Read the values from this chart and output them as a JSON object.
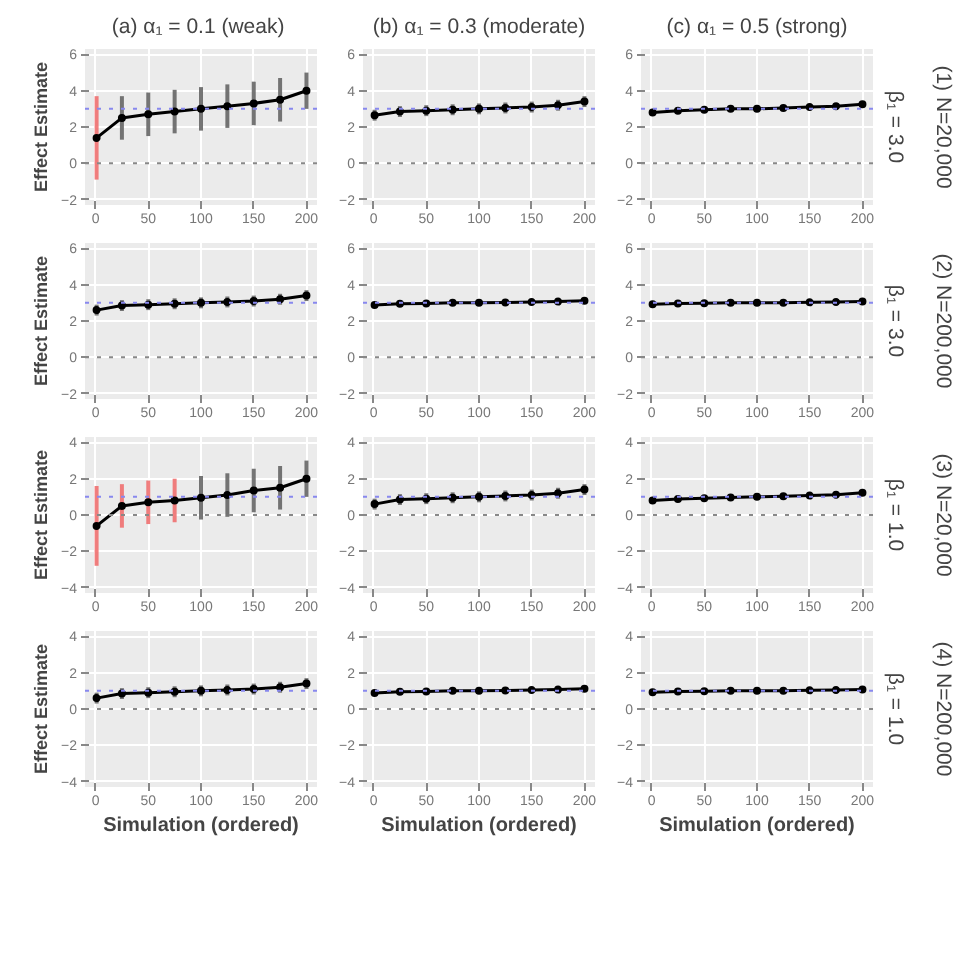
{
  "chart_data": [
    {
      "type": "line",
      "title": "(a) α₁ = 0.1  (weak)",
      "ylabel": "Effect Estimate",
      "x": [
        1,
        25,
        50,
        75,
        100,
        125,
        150,
        175,
        200
      ],
      "series": [
        {
          "color": "#000000",
          "values": [
            1.4,
            2.5,
            2.7,
            2.85,
            3.0,
            3.15,
            3.3,
            3.5,
            4.0
          ],
          "errors": [
            2.3,
            1.2,
            1.2,
            1.2,
            1.2,
            1.2,
            1.2,
            1.2,
            1.0
          ],
          "colors": [
            "#f07070",
            "#666666",
            "#666666",
            "#666666",
            "#666666",
            "#666666",
            "#666666",
            "#666666",
            "#666666"
          ]
        }
      ],
      "xlim": [
        -10,
        210
      ],
      "ylim": [
        -2.3,
        6.3
      ],
      "xticks": [
        0,
        50,
        100,
        150,
        200
      ],
      "yticks": [
        -2,
        0,
        2,
        4,
        6
      ],
      "ref_lines": [
        {
          "axis": "y",
          "value": 0,
          "color": "#888888",
          "line_style": "dotted"
        },
        {
          "axis": "y",
          "value": 3,
          "color": "#8888ee",
          "line_style": "dotted"
        }
      ],
      "grid": true,
      "marker": "circle"
    },
    {
      "type": "line",
      "title": "(b) α₁ = 0.3 (moderate)",
      "x": [
        1,
        25,
        50,
        75,
        100,
        125,
        150,
        175,
        200
      ],
      "series": [
        {
          "color": "#000000",
          "values": [
            2.65,
            2.85,
            2.9,
            2.95,
            3.0,
            3.05,
            3.1,
            3.2,
            3.4
          ],
          "errors": [
            0.3,
            0.3,
            0.3,
            0.3,
            0.3,
            0.3,
            0.3,
            0.3,
            0.3
          ],
          "colors": [
            "#666666",
            "#666666",
            "#666666",
            "#666666",
            "#666666",
            "#666666",
            "#666666",
            "#666666",
            "#666666"
          ]
        }
      ],
      "xlim": [
        -10,
        210
      ],
      "ylim": [
        -2.3,
        6.3
      ],
      "xticks": [
        0,
        50,
        100,
        150,
        200
      ],
      "yticks": [
        -2,
        0,
        2,
        4,
        6
      ],
      "ref_lines": [
        {
          "axis": "y",
          "value": 0,
          "color": "#888888",
          "line_style": "dotted"
        },
        {
          "axis": "y",
          "value": 3,
          "color": "#8888ee",
          "line_style": "dotted"
        }
      ],
      "grid": true,
      "marker": "circle"
    },
    {
      "type": "line",
      "title": "(c) α₁ = 0.5 (strong)",
      "annotations": [
        "(1) N=20,000",
        "β₁ = 3.0"
      ],
      "x": [
        1,
        25,
        50,
        75,
        100,
        125,
        150,
        175,
        200
      ],
      "series": [
        {
          "color": "#000000",
          "values": [
            2.8,
            2.9,
            2.95,
            3.0,
            3.0,
            3.05,
            3.1,
            3.15,
            3.25
          ],
          "errors": [
            0.15,
            0.15,
            0.15,
            0.15,
            0.15,
            0.15,
            0.15,
            0.15,
            0.15
          ],
          "colors": [
            "#666666",
            "#666666",
            "#666666",
            "#666666",
            "#666666",
            "#666666",
            "#666666",
            "#666666",
            "#666666"
          ]
        }
      ],
      "xlim": [
        -10,
        210
      ],
      "ylim": [
        -2.3,
        6.3
      ],
      "xticks": [
        0,
        50,
        100,
        150,
        200
      ],
      "yticks": [
        -2,
        0,
        2,
        4,
        6
      ],
      "ref_lines": [
        {
          "axis": "y",
          "value": 0,
          "color": "#888888",
          "line_style": "dotted"
        },
        {
          "axis": "y",
          "value": 3,
          "color": "#8888ee",
          "line_style": "dotted"
        }
      ],
      "grid": true,
      "marker": "circle"
    },
    {
      "type": "line",
      "ylabel": "Effect Estimate",
      "x": [
        1,
        25,
        50,
        75,
        100,
        125,
        150,
        175,
        200
      ],
      "series": [
        {
          "color": "#000000",
          "values": [
            2.6,
            2.85,
            2.9,
            2.95,
            3.0,
            3.05,
            3.1,
            3.2,
            3.4
          ],
          "errors": [
            0.3,
            0.3,
            0.3,
            0.3,
            0.3,
            0.3,
            0.3,
            0.3,
            0.3
          ],
          "colors": [
            "#666666",
            "#666666",
            "#666666",
            "#666666",
            "#666666",
            "#666666",
            "#666666",
            "#666666",
            "#666666"
          ]
        }
      ],
      "xlim": [
        -10,
        210
      ],
      "ylim": [
        -2.3,
        6.3
      ],
      "xticks": [
        0,
        50,
        100,
        150,
        200
      ],
      "yticks": [
        -2,
        0,
        2,
        4,
        6
      ],
      "ref_lines": [
        {
          "axis": "y",
          "value": 0,
          "color": "#888888",
          "line_style": "dotted"
        },
        {
          "axis": "y",
          "value": 3,
          "color": "#8888ee",
          "line_style": "dotted"
        }
      ],
      "grid": true,
      "marker": "circle"
    },
    {
      "type": "line",
      "x": [
        1,
        25,
        50,
        75,
        100,
        125,
        150,
        175,
        200
      ],
      "series": [
        {
          "color": "#000000",
          "values": [
            2.88,
            2.95,
            2.97,
            3.0,
            3.0,
            3.02,
            3.05,
            3.07,
            3.12
          ],
          "errors": [
            0.08,
            0.08,
            0.08,
            0.08,
            0.08,
            0.08,
            0.08,
            0.08,
            0.08
          ],
          "colors": [
            "#666666",
            "#666666",
            "#666666",
            "#666666",
            "#666666",
            "#666666",
            "#666666",
            "#666666",
            "#666666"
          ]
        }
      ],
      "xlim": [
        -10,
        210
      ],
      "ylim": [
        -2.3,
        6.3
      ],
      "xticks": [
        0,
        50,
        100,
        150,
        200
      ],
      "yticks": [
        -2,
        0,
        2,
        4,
        6
      ],
      "ref_lines": [
        {
          "axis": "y",
          "value": 0,
          "color": "#888888",
          "line_style": "dotted"
        },
        {
          "axis": "y",
          "value": 3,
          "color": "#8888ee",
          "line_style": "dotted"
        }
      ],
      "grid": true,
      "marker": "circle"
    },
    {
      "type": "line",
      "annotations": [
        "(2) N=200,000",
        "β₁ = 3.0"
      ],
      "x": [
        1,
        25,
        50,
        75,
        100,
        125,
        150,
        175,
        200
      ],
      "series": [
        {
          "color": "#000000",
          "values": [
            2.92,
            2.96,
            2.98,
            3.0,
            3.0,
            3.01,
            3.03,
            3.05,
            3.08
          ],
          "errors": [
            0.05,
            0.05,
            0.05,
            0.05,
            0.05,
            0.05,
            0.05,
            0.05,
            0.05
          ],
          "colors": [
            "#666666",
            "#666666",
            "#666666",
            "#666666",
            "#666666",
            "#666666",
            "#666666",
            "#666666",
            "#666666"
          ]
        }
      ],
      "xlim": [
        -10,
        210
      ],
      "ylim": [
        -2.3,
        6.3
      ],
      "xticks": [
        0,
        50,
        100,
        150,
        200
      ],
      "yticks": [
        -2,
        0,
        2,
        4,
        6
      ],
      "ref_lines": [
        {
          "axis": "y",
          "value": 0,
          "color": "#888888",
          "line_style": "dotted"
        },
        {
          "axis": "y",
          "value": 3,
          "color": "#8888ee",
          "line_style": "dotted"
        }
      ],
      "grid": true,
      "marker": "circle"
    },
    {
      "type": "line",
      "ylabel": "Effect Estimate",
      "x": [
        1,
        25,
        50,
        75,
        100,
        125,
        150,
        175,
        200
      ],
      "series": [
        {
          "color": "#000000",
          "values": [
            -0.6,
            0.5,
            0.7,
            0.8,
            0.95,
            1.1,
            1.35,
            1.5,
            2.0
          ],
          "errors": [
            2.2,
            1.2,
            1.2,
            1.2,
            1.2,
            1.2,
            1.2,
            1.2,
            1.0
          ],
          "colors": [
            "#f07070",
            "#f07070",
            "#f07070",
            "#f07070",
            "#666666",
            "#666666",
            "#666666",
            "#666666",
            "#666666"
          ]
        }
      ],
      "xlim": [
        -10,
        210
      ],
      "ylim": [
        -4.3,
        4.3
      ],
      "xticks": [
        0,
        50,
        100,
        150,
        200
      ],
      "yticks": [
        -4,
        -2,
        0,
        2,
        4
      ],
      "ref_lines": [
        {
          "axis": "y",
          "value": 0,
          "color": "#888888",
          "line_style": "dotted"
        },
        {
          "axis": "y",
          "value": 1,
          "color": "#8888ee",
          "line_style": "dotted"
        }
      ],
      "grid": true,
      "marker": "circle"
    },
    {
      "type": "line",
      "x": [
        1,
        25,
        50,
        75,
        100,
        125,
        150,
        175,
        200
      ],
      "series": [
        {
          "color": "#000000",
          "values": [
            0.6,
            0.85,
            0.9,
            0.95,
            1.0,
            1.05,
            1.1,
            1.2,
            1.4
          ],
          "errors": [
            0.3,
            0.3,
            0.3,
            0.3,
            0.3,
            0.3,
            0.3,
            0.3,
            0.3
          ],
          "colors": [
            "#666666",
            "#666666",
            "#666666",
            "#666666",
            "#666666",
            "#666666",
            "#666666",
            "#666666",
            "#666666"
          ]
        }
      ],
      "xlim": [
        -10,
        210
      ],
      "ylim": [
        -4.3,
        4.3
      ],
      "xticks": [
        0,
        50,
        100,
        150,
        200
      ],
      "yticks": [
        -4,
        -2,
        0,
        2,
        4
      ],
      "ref_lines": [
        {
          "axis": "y",
          "value": 0,
          "color": "#888888",
          "line_style": "dotted"
        },
        {
          "axis": "y",
          "value": 1,
          "color": "#8888ee",
          "line_style": "dotted"
        }
      ],
      "grid": true,
      "marker": "circle"
    },
    {
      "type": "line",
      "annotations": [
        "(3) N=20,000",
        "β₁ = 1.0"
      ],
      "x": [
        1,
        25,
        50,
        75,
        100,
        125,
        150,
        175,
        200
      ],
      "series": [
        {
          "color": "#000000",
          "values": [
            0.8,
            0.88,
            0.93,
            0.97,
            1.0,
            1.03,
            1.07,
            1.12,
            1.22
          ],
          "errors": [
            0.15,
            0.15,
            0.15,
            0.15,
            0.15,
            0.15,
            0.15,
            0.15,
            0.15
          ],
          "colors": [
            "#666666",
            "#666666",
            "#666666",
            "#666666",
            "#666666",
            "#666666",
            "#666666",
            "#666666",
            "#666666"
          ]
        }
      ],
      "xlim": [
        -10,
        210
      ],
      "ylim": [
        -4.3,
        4.3
      ],
      "xticks": [
        0,
        50,
        100,
        150,
        200
      ],
      "yticks": [
        -4,
        -2,
        0,
        2,
        4
      ],
      "ref_lines": [
        {
          "axis": "y",
          "value": 0,
          "color": "#888888",
          "line_style": "dotted"
        },
        {
          "axis": "y",
          "value": 1,
          "color": "#8888ee",
          "line_style": "dotted"
        }
      ],
      "grid": true,
      "marker": "circle"
    },
    {
      "type": "line",
      "ylabel": "Effect Estimate",
      "xlabel": "Simulation (ordered)",
      "x": [
        1,
        25,
        50,
        75,
        100,
        125,
        150,
        175,
        200
      ],
      "series": [
        {
          "color": "#000000",
          "values": [
            0.6,
            0.85,
            0.9,
            0.95,
            1.0,
            1.05,
            1.1,
            1.2,
            1.4
          ],
          "errors": [
            0.3,
            0.3,
            0.3,
            0.3,
            0.3,
            0.3,
            0.3,
            0.3,
            0.3
          ],
          "colors": [
            "#666666",
            "#666666",
            "#666666",
            "#666666",
            "#666666",
            "#666666",
            "#666666",
            "#666666",
            "#666666"
          ]
        }
      ],
      "xlim": [
        -10,
        210
      ],
      "ylim": [
        -4.3,
        4.3
      ],
      "xticks": [
        0,
        50,
        100,
        150,
        200
      ],
      "yticks": [
        -4,
        -2,
        0,
        2,
        4
      ],
      "ref_lines": [
        {
          "axis": "y",
          "value": 0,
          "color": "#888888",
          "line_style": "dotted"
        },
        {
          "axis": "y",
          "value": 1,
          "color": "#8888ee",
          "line_style": "dotted"
        }
      ],
      "grid": true,
      "marker": "circle"
    },
    {
      "type": "line",
      "xlabel": "Simulation (ordered)",
      "x": [
        1,
        25,
        50,
        75,
        100,
        125,
        150,
        175,
        200
      ],
      "series": [
        {
          "color": "#000000",
          "values": [
            0.88,
            0.95,
            0.97,
            1.0,
            1.0,
            1.02,
            1.05,
            1.07,
            1.12
          ],
          "errors": [
            0.08,
            0.08,
            0.08,
            0.08,
            0.08,
            0.08,
            0.08,
            0.08,
            0.08
          ],
          "colors": [
            "#666666",
            "#666666",
            "#666666",
            "#666666",
            "#666666",
            "#666666",
            "#666666",
            "#666666",
            "#666666"
          ]
        }
      ],
      "xlim": [
        -10,
        210
      ],
      "ylim": [
        -4.3,
        4.3
      ],
      "xticks": [
        0,
        50,
        100,
        150,
        200
      ],
      "yticks": [
        -4,
        -2,
        0,
        2,
        4
      ],
      "ref_lines": [
        {
          "axis": "y",
          "value": 0,
          "color": "#888888",
          "line_style": "dotted"
        },
        {
          "axis": "y",
          "value": 1,
          "color": "#8888ee",
          "line_style": "dotted"
        }
      ],
      "grid": true,
      "marker": "circle"
    },
    {
      "type": "line",
      "xlabel": "Simulation (ordered)",
      "annotations": [
        "(4) N=200,000",
        "β₁ = 1.0"
      ],
      "x": [
        1,
        25,
        50,
        75,
        100,
        125,
        150,
        175,
        200
      ],
      "series": [
        {
          "color": "#000000",
          "values": [
            0.92,
            0.96,
            0.98,
            1.0,
            1.0,
            1.01,
            1.03,
            1.05,
            1.08
          ],
          "errors": [
            0.05,
            0.05,
            0.05,
            0.05,
            0.05,
            0.05,
            0.05,
            0.05,
            0.05
          ],
          "colors": [
            "#666666",
            "#666666",
            "#666666",
            "#666666",
            "#666666",
            "#666666",
            "#666666",
            "#666666",
            "#666666"
          ]
        }
      ],
      "xlim": [
        -10,
        210
      ],
      "ylim": [
        -4.3,
        4.3
      ],
      "xticks": [
        0,
        50,
        100,
        150,
        200
      ],
      "yticks": [
        -4,
        -2,
        0,
        2,
        4
      ],
      "ref_lines": [
        {
          "axis": "y",
          "value": 0,
          "color": "#888888",
          "line_style": "dotted"
        },
        {
          "axis": "y",
          "value": 1,
          "color": "#8888ee",
          "line_style": "dotted"
        }
      ],
      "grid": true,
      "marker": "circle"
    }
  ]
}
